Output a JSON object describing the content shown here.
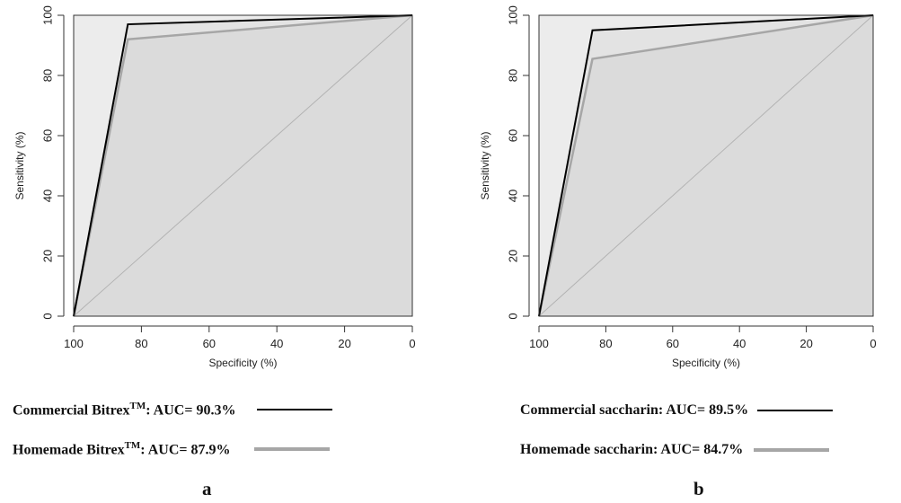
{
  "chart_data": [
    {
      "type": "line",
      "chart_kind": "ROC curve",
      "panel_label": "a",
      "xlabel": "Specificity (%)",
      "ylabel": "Sensitivity (%)",
      "xlim": [
        100,
        0
      ],
      "ylim": [
        0,
        100
      ],
      "x_reversed": true,
      "xticks": [
        100,
        80,
        60,
        40,
        20,
        0
      ],
      "yticks": [
        0,
        20,
        40,
        60,
        80,
        100
      ],
      "reference_line": {
        "x": [
          100,
          0
        ],
        "y": [
          0,
          100
        ]
      },
      "series": [
        {
          "name": "Commercial Bitrex",
          "name_sup": "TM",
          "auc_text": ": AUC= 90.3%",
          "color": "#000000",
          "x": [
            100,
            84,
            0
          ],
          "y": [
            0,
            97,
            100
          ]
        },
        {
          "name": "Homemade Bitrex",
          "name_sup": "TM",
          "auc_text": ": AUC= 87.9%",
          "color": "#a6a6a6",
          "x": [
            100,
            84,
            0
          ],
          "y": [
            0,
            92,
            100
          ]
        }
      ]
    },
    {
      "type": "line",
      "chart_kind": "ROC curve",
      "panel_label": "b",
      "xlabel": "Specificity (%)",
      "ylabel": "Sensitivity (%)",
      "xlim": [
        100,
        0
      ],
      "ylim": [
        0,
        100
      ],
      "x_reversed": true,
      "xticks": [
        100,
        80,
        60,
        40,
        20,
        0
      ],
      "yticks": [
        0,
        20,
        40,
        60,
        80,
        100
      ],
      "reference_line": {
        "x": [
          100,
          0
        ],
        "y": [
          0,
          100
        ]
      },
      "series": [
        {
          "name": "Commercial saccharin",
          "name_sup": "",
          "auc_text": ": AUC= 89.5%",
          "color": "#000000",
          "x": [
            100,
            84,
            0
          ],
          "y": [
            0,
            95,
            100
          ]
        },
        {
          "name": "Homemade saccharin",
          "name_sup": "",
          "auc_text": ": AUC= 84.7%",
          "color": "#a6a6a6",
          "x": [
            100,
            84,
            0
          ],
          "y": [
            0,
            85.5,
            100
          ]
        }
      ]
    }
  ],
  "colors": {
    "plot_background": "#ececec",
    "area_fill": "#d9d9d9",
    "reference_line": "#b3b3b3",
    "commercial": "#000000",
    "homemade": "#a6a6a6"
  }
}
